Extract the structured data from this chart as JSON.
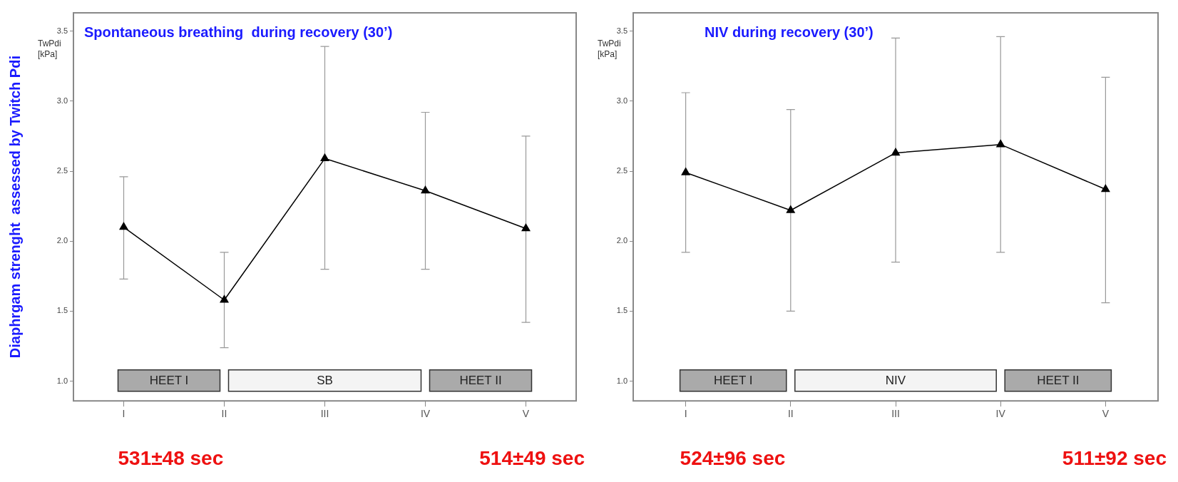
{
  "chart_data": [
    {
      "type": "line",
      "title": "Spontaneous breathing  during recovery (30’)",
      "ylabel": "TwPdi [kPa]",
      "categories": [
        "I",
        "II",
        "III",
        "IV",
        "V"
      ],
      "values": [
        2.1,
        1.58,
        2.59,
        2.36,
        2.09
      ],
      "errors": [
        [
          1.73,
          2.46
        ],
        [
          1.24,
          1.92
        ],
        [
          1.8,
          3.39
        ],
        [
          1.8,
          2.92
        ],
        [
          1.42,
          2.75
        ]
      ],
      "color": "#000000",
      "marker": "triangle",
      "line_style": "solid",
      "ylim": [
        0.86,
        3.63
      ],
      "yticks": [
        {
          "value": 1,
          "label": "1.0"
        },
        1.5,
        {
          "value": 2,
          "label": "2.0"
        },
        2.5,
        {
          "value": 3,
          "label": "3.0"
        },
        3.5
      ],
      "bands": [
        {
          "axis": "x",
          "from": "I",
          "to": "II",
          "label": "HEET I",
          "color": "#aaaaaa"
        },
        {
          "axis": "x",
          "from": "II",
          "to": "IV",
          "label": "SB",
          "color": "#f4f4f4"
        },
        {
          "axis": "x",
          "from": "IV",
          "to": "V",
          "label": "HEET II",
          "color": "#aaaaaa"
        }
      ],
      "annotations": [
        "Diaphrgam strenght  assessed by Twitch Pdi",
        "531±48 sec",
        "514±49 sec"
      ]
    },
    {
      "type": "line",
      "title": "NIV during recovery (30’)",
      "ylabel": "TwPdi [kPa]",
      "categories": [
        "I",
        "II",
        "III",
        "IV",
        "V"
      ],
      "values": [
        2.49,
        2.22,
        2.63,
        2.69,
        2.37
      ],
      "errors": [
        [
          1.92,
          3.06
        ],
        [
          1.5,
          2.94
        ],
        [
          1.85,
          3.45
        ],
        [
          1.92,
          3.46
        ],
        [
          1.56,
          3.17
        ]
      ],
      "color": "#000000",
      "marker": "triangle",
      "line_style": "solid",
      "ylim": [
        0.86,
        3.63
      ],
      "yticks": [
        {
          "value": 1,
          "label": "1.0"
        },
        1.5,
        {
          "value": 2,
          "label": "2.0"
        },
        2.5,
        {
          "value": 3,
          "label": "3.0"
        },
        3.5
      ],
      "bands": [
        {
          "axis": "x",
          "from": "I",
          "to": "II",
          "label": "HEET I",
          "color": "#aaaaaa"
        },
        {
          "axis": "x",
          "from": "II",
          "to": "IV",
          "label": "NIV",
          "color": "#f4f4f4"
        },
        {
          "axis": "x",
          "from": "IV",
          "to": "V",
          "label": "HEET II",
          "color": "#aaaaaa"
        }
      ],
      "annotations": [
        "524±96 sec",
        "511±92 sec"
      ]
    }
  ]
}
